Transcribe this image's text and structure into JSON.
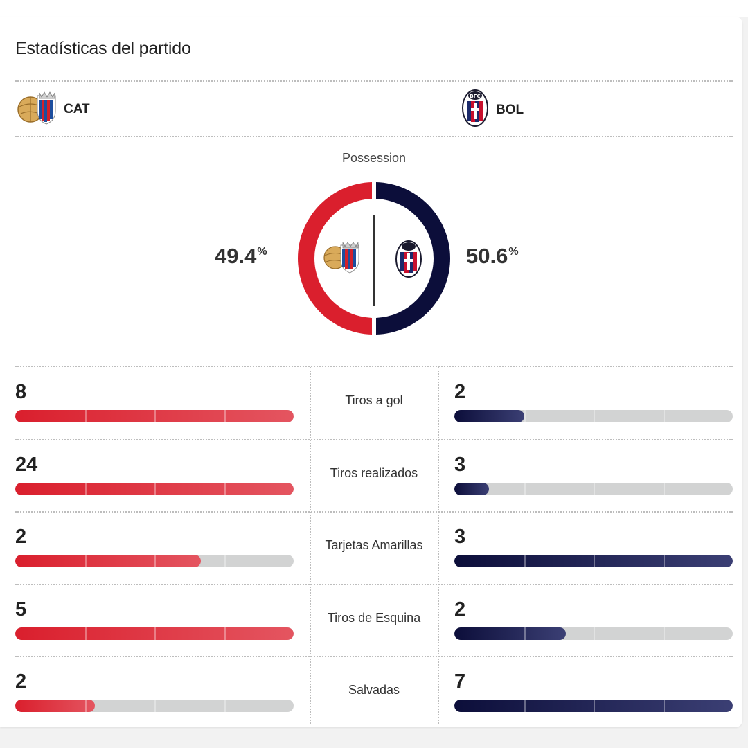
{
  "title": "Estadísticas del partido",
  "teams": {
    "home": {
      "abbr": "CAT",
      "logo_icon": "catania-crest-icon",
      "color": "#da1f2d"
    },
    "away": {
      "abbr": "BOL",
      "logo_icon": "bologna-crest-icon",
      "color": "#0c0e3a"
    }
  },
  "possession": {
    "label": "Possession",
    "home_value": "49.4",
    "away_value": "50.6",
    "unit": "%",
    "home_fraction": 0.494,
    "away_fraction": 0.506
  },
  "stats": [
    {
      "label": "Tiros a gol",
      "home": "8",
      "away": "2",
      "home_fill": 1.0,
      "away_fill": 0.25
    },
    {
      "label": "Tiros realizados",
      "home": "24",
      "away": "3",
      "home_fill": 1.0,
      "away_fill": 0.125
    },
    {
      "label": "Tarjetas Amarillas",
      "home": "2",
      "away": "3",
      "home_fill": 0.667,
      "away_fill": 1.0
    },
    {
      "label": "Tiros de Esquina",
      "home": "5",
      "away": "2",
      "home_fill": 1.0,
      "away_fill": 0.4
    },
    {
      "label": "Salvadas",
      "home": "2",
      "away": "7",
      "home_fill": 0.286,
      "away_fill": 1.0
    }
  ]
}
